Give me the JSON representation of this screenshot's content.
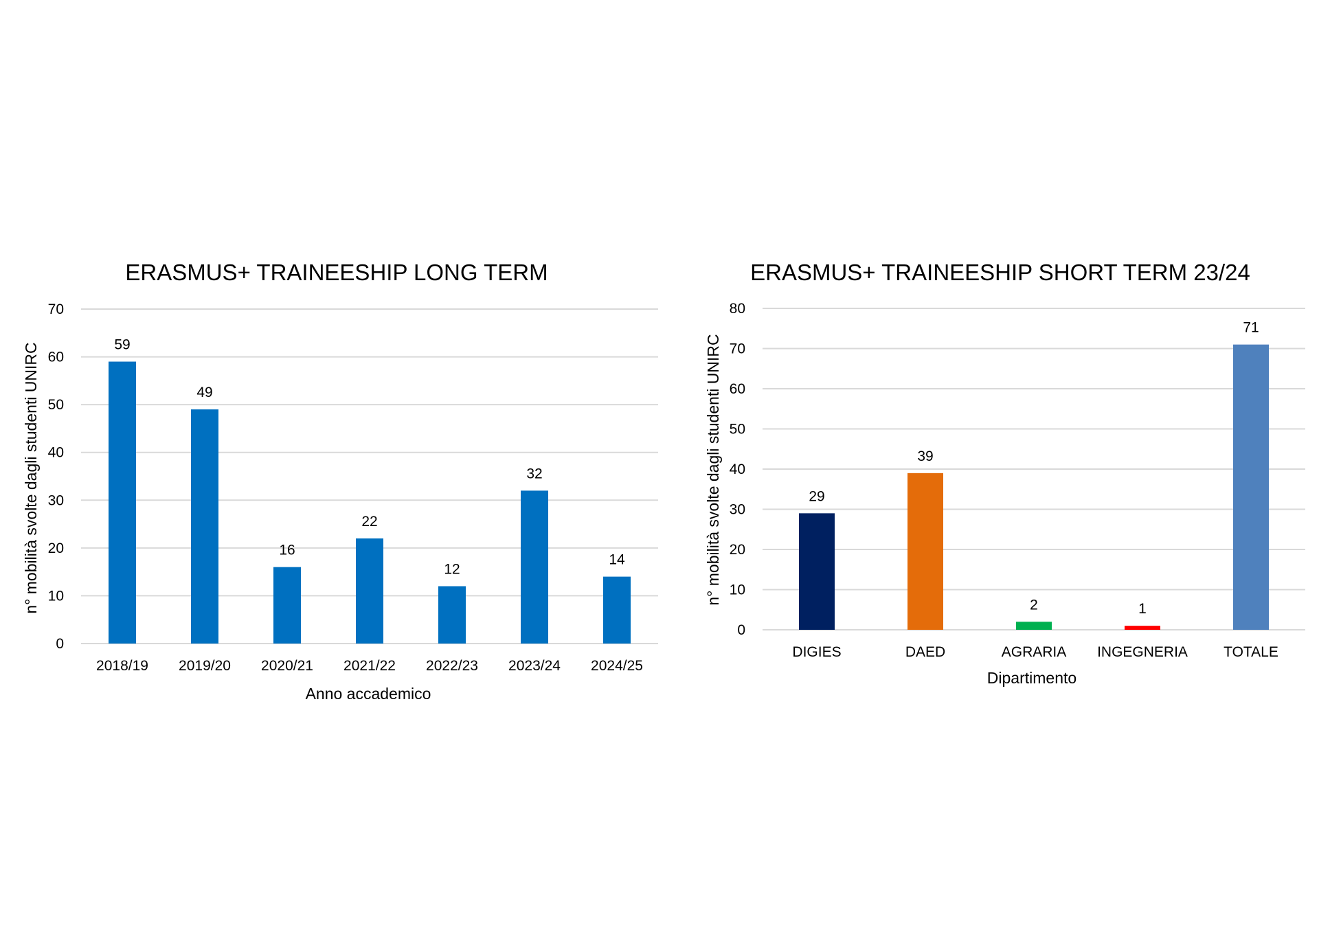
{
  "chart_data": [
    {
      "type": "bar",
      "title": "ERASMUS+ TRAINEESHIP LONG TERM",
      "xlabel": "Anno accademico",
      "ylabel": "n° mobilità svolte dagli studenti UNIRC",
      "categories": [
        "2018/19",
        "2019/20",
        "2020/21",
        "2021/22",
        "2022/23",
        "2023/24",
        "2024/25"
      ],
      "values": [
        59,
        49,
        16,
        22,
        12,
        32,
        14
      ],
      "ylim": [
        0,
        70
      ],
      "yticks": [
        0,
        10,
        20,
        30,
        40,
        50,
        60,
        70
      ],
      "grid": true,
      "bar_colors": [
        "#0070c0",
        "#0070c0",
        "#0070c0",
        "#0070c0",
        "#0070c0",
        "#0070c0",
        "#0070c0"
      ]
    },
    {
      "type": "bar",
      "title": "ERASMUS+ TRAINEESHIP SHORT TERM 23/24",
      "xlabel": "Dipartimento",
      "ylabel": "n° mobilità svolte dagli studenti UNIRC",
      "categories": [
        "DIGIES",
        "DAED",
        "AGRARIA",
        "INGEGNERIA",
        "TOTALE"
      ],
      "values": [
        29,
        39,
        2,
        1,
        71
      ],
      "ylim": [
        0,
        80
      ],
      "yticks": [
        0,
        10,
        20,
        30,
        40,
        50,
        60,
        70,
        80
      ],
      "grid": true,
      "bar_colors": [
        "#002060",
        "#e46c0a",
        "#00b050",
        "#ff0000",
        "#4f81bd"
      ]
    }
  ]
}
